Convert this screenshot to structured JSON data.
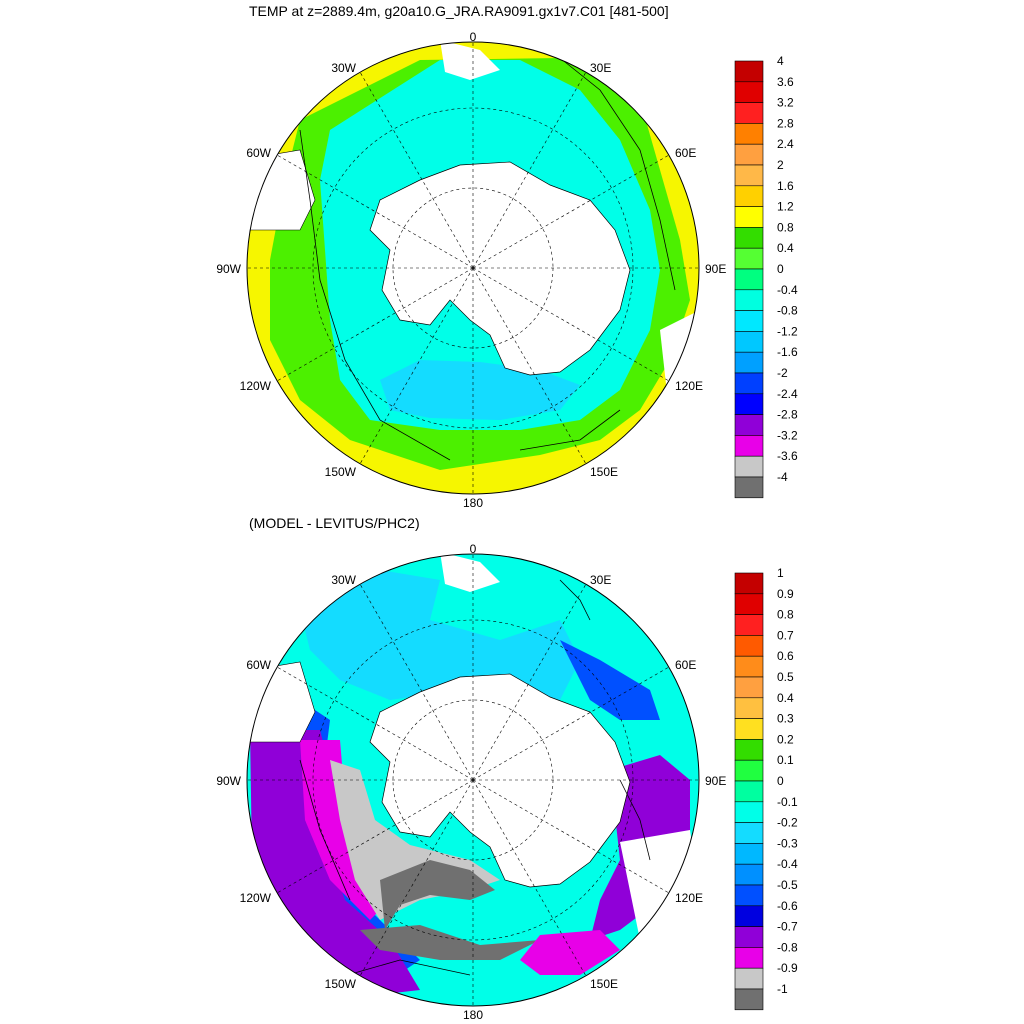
{
  "maps": [
    {
      "title": "TEMP at z=2889.4m, g20a10.G_JRA.RA9091.gx1v7.C01 [481-500]",
      "lon_labels": {
        "n": "0",
        "e30": "30E",
        "e60": "60E",
        "e90": "90E",
        "e120": "120E",
        "e150": "150E",
        "s": "180",
        "w150": "150W",
        "w120": "120W",
        "w90": "90W",
        "w60": "60W",
        "w30": "30W"
      },
      "colorbar": {
        "labels": [
          "4",
          "3.6",
          "3.2",
          "2.8",
          "2.4",
          "2",
          "1.6",
          "1.2",
          "0.8",
          "0.4",
          "0",
          "-0.4",
          "-0.8",
          "-1.2",
          "-1.6",
          "-2",
          "-2.4",
          "-2.8",
          "-3.2",
          "-3.6",
          "-4"
        ],
        "colors": [
          "#c40000",
          "#e00000",
          "#ff2020",
          "#ff8000",
          "#ffa040",
          "#ffb848",
          "#ffd000",
          "#ffff00",
          "#33dd00",
          "#55ff33",
          "#00ff80",
          "#00ffe0",
          "#00e8ff",
          "#00c8ff",
          "#00a0ff",
          "#0040ff",
          "#0000ff",
          "#9000d8",
          "#e800e8",
          "#c8c8c8",
          "#707070"
        ]
      },
      "colors": {
        "outer": "#f6f600",
        "mid": "#4cf000",
        "inner": "#00ffe8",
        "deep": "#14dcff",
        "land": "#ffffff"
      }
    },
    {
      "title": "(MODEL - LEVITUS/PHC2)",
      "lon_labels": {
        "n": "0",
        "e30": "30E",
        "e60": "60E",
        "e90": "90E",
        "e120": "120E",
        "e150": "150E",
        "s": "180",
        "w150": "150W",
        "w120": "120W",
        "w90": "90W",
        "w60": "60W",
        "w30": "30W"
      },
      "colorbar": {
        "labels": [
          "1",
          "0.9",
          "0.8",
          "0.7",
          "0.6",
          "0.5",
          "0.4",
          "0.3",
          "0.2",
          "0.1",
          "0",
          "-0.1",
          "-0.2",
          "-0.3",
          "-0.4",
          "-0.5",
          "-0.6",
          "-0.7",
          "-0.8",
          "-0.9",
          "-1"
        ],
        "colors": [
          "#c40000",
          "#e00000",
          "#ff2020",
          "#ff5a00",
          "#ff8c1a",
          "#ffa040",
          "#ffc040",
          "#ffe020",
          "#33dd00",
          "#20ff40",
          "#00ffa0",
          "#00ffe8",
          "#14dcff",
          "#00b8ff",
          "#0090ff",
          "#0050ff",
          "#0000e0",
          "#9000d8",
          "#e800e8",
          "#c8c8c8",
          "#707070"
        ]
      },
      "colors": {
        "cyan": "#00ffe8",
        "lightblue": "#14dcff",
        "blue": "#0050ff",
        "purple": "#9000d8",
        "magenta": "#e800e8",
        "gray": "#c8c8c8",
        "darkgray": "#707070",
        "land": "#ffffff"
      }
    }
  ]
}
